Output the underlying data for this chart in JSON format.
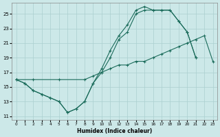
{
  "bg_color": "#cce8e8",
  "grid_color": "#aacfcf",
  "line_color": "#1a6b5a",
  "xlabel": "Humidex (Indice chaleur)",
  "xlim": [
    -0.5,
    23.5
  ],
  "ylim": [
    10.5,
    26.5
  ],
  "xticks": [
    0,
    1,
    2,
    3,
    4,
    5,
    6,
    7,
    8,
    9,
    10,
    11,
    12,
    13,
    14,
    15,
    16,
    17,
    18,
    19,
    20,
    21,
    22,
    23
  ],
  "yticks": [
    11,
    13,
    15,
    17,
    19,
    21,
    23,
    25
  ],
  "line1": {
    "x": [
      0,
      2,
      5,
      8,
      9,
      10,
      11,
      12,
      13,
      14,
      15,
      16,
      17,
      18,
      19,
      20,
      21,
      22,
      23
    ],
    "y": [
      16.0,
      16.0,
      16.0,
      16.0,
      16.5,
      17.0,
      17.5,
      18.0,
      18.0,
      18.5,
      18.5,
      19.0,
      19.5,
      20.0,
      20.5,
      21.0,
      21.5,
      22.0,
      18.5
    ]
  },
  "line2": {
    "x": [
      0,
      1,
      2,
      3,
      4,
      5,
      6,
      7,
      8,
      9,
      10,
      11,
      12,
      13,
      14,
      15,
      16,
      17,
      18,
      19,
      20,
      21
    ],
    "y": [
      16.0,
      15.5,
      14.5,
      14.0,
      13.5,
      13.0,
      11.5,
      12.0,
      13.0,
      15.5,
      17.0,
      19.0,
      21.5,
      22.5,
      25.0,
      25.5,
      25.5,
      25.5,
      25.5,
      24.0,
      22.5,
      19.0
    ]
  },
  "line3": {
    "x": [
      0,
      1,
      2,
      3,
      4,
      5,
      6,
      7,
      8,
      9,
      10,
      11,
      12,
      13,
      14,
      15,
      16,
      17,
      18,
      19,
      20,
      21
    ],
    "y": [
      16.0,
      15.5,
      14.5,
      14.0,
      13.5,
      13.0,
      11.5,
      12.0,
      13.0,
      15.5,
      17.5,
      20.0,
      22.0,
      23.5,
      25.5,
      26.0,
      25.5,
      25.5,
      25.5,
      24.0,
      22.5,
      19.0
    ]
  }
}
